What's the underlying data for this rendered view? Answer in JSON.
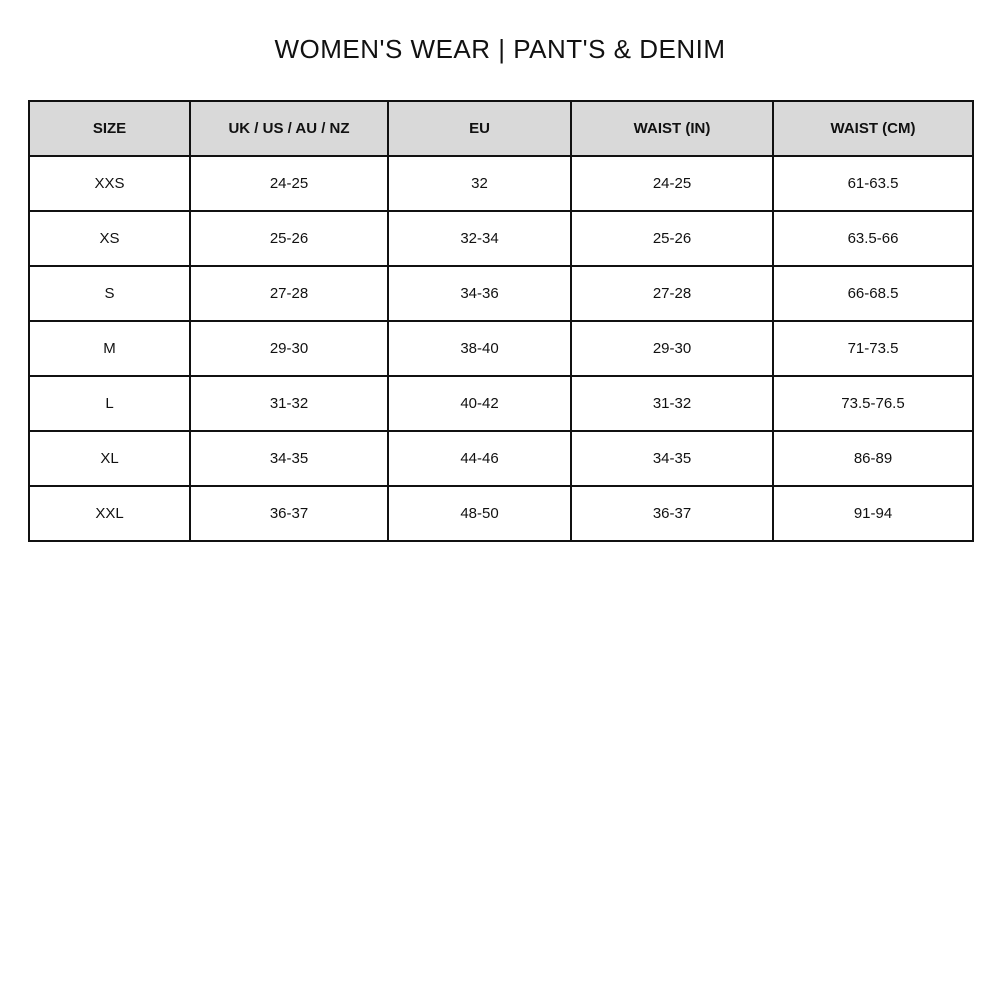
{
  "title": "WOMEN'S WEAR | PANT'S & DENIM",
  "colors": {
    "header_bg": "#d9d9d9",
    "border": "#111111"
  },
  "table": {
    "headers": [
      "SIZE",
      "UK / US / AU / NZ",
      "EU",
      "WAIST (IN)",
      "WAIST (CM)"
    ],
    "rows": [
      [
        "XXS",
        "24-25",
        "32",
        "24-25",
        "61-63.5"
      ],
      [
        "XS",
        "25-26",
        "32-34",
        "25-26",
        "63.5-66"
      ],
      [
        "S",
        "27-28",
        "34-36",
        "27-28",
        "66-68.5"
      ],
      [
        "M",
        "29-30",
        "38-40",
        "29-30",
        "71-73.5"
      ],
      [
        "L",
        "31-32",
        "40-42",
        "31-32",
        "73.5-76.5"
      ],
      [
        "XL",
        "34-35",
        "44-46",
        "34-35",
        "86-89"
      ],
      [
        "XXL",
        "36-37",
        "48-50",
        "36-37",
        "91-94"
      ]
    ]
  }
}
